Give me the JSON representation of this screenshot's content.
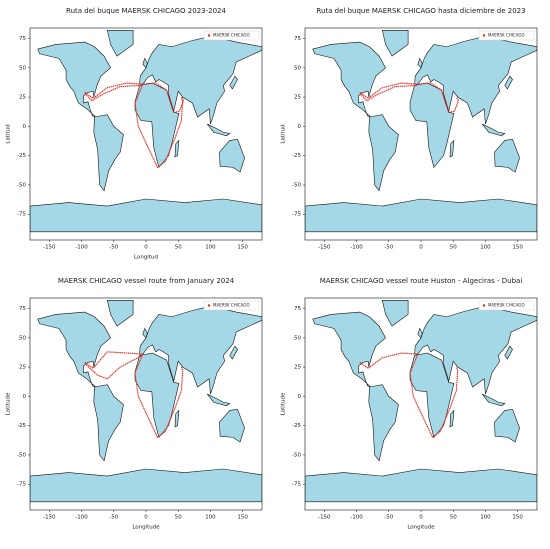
{
  "chart_data": [
    {
      "type": "line",
      "title": "Ruta del buque MAERSK CHICAGO 2023-2024",
      "x_label": "Longitud",
      "y_label": "Latitud",
      "xlim": [
        -180,
        180
      ],
      "ylim": [
        -97,
        84
      ],
      "xticks": [
        -150,
        -100,
        -50,
        0,
        50,
        100,
        150
      ],
      "yticks": [
        -75,
        -50,
        -25,
        0,
        25,
        50,
        75
      ],
      "legend": "upper right",
      "series": [
        {
          "name": "MAERSK CHICAGO",
          "color": "#e8261c",
          "x": [
            -95,
            -82,
            -60,
            -30,
            -6,
            15,
            32,
            38,
            43,
            52,
            58,
            55,
            null,
            -95,
            -84,
            -65,
            -40,
            -6,
            null,
            -5,
            -17,
            -12,
            5,
            18,
            30,
            45,
            55,
            57,
            55
          ],
          "values": [
            29,
            24,
            33,
            37,
            36,
            37,
            31,
            20,
            12,
            13,
            22,
            25,
            null,
            28,
            22,
            28,
            34,
            35,
            null,
            36,
            20,
            0,
            -20,
            -35,
            -30,
            -10,
            5,
            22,
            25
          ]
        }
      ]
    },
    {
      "type": "line",
      "title": "Ruta del buque MAERSK CHICAGO hasta diciembre de 2023",
      "y_label": "Latitud",
      "xlim": [
        -180,
        180
      ],
      "ylim": [
        -97,
        84
      ],
      "xticks": [
        -150,
        -100,
        -50,
        0,
        50,
        100,
        150
      ],
      "yticks": [
        -75,
        -50,
        -25,
        0,
        25,
        50,
        75
      ],
      "legend": "upper right",
      "series": [
        {
          "name": "MAERSK CHICAGO",
          "color": "#e8261c",
          "x": [
            -95,
            -82,
            -60,
            -30,
            -6,
            15,
            32,
            38,
            43,
            52,
            58,
            55,
            null,
            -95,
            -84,
            -65,
            -40,
            -6
          ],
          "values": [
            29,
            24,
            33,
            37,
            36,
            37,
            31,
            20,
            12,
            13,
            22,
            25,
            null,
            28,
            22,
            28,
            34,
            35
          ]
        }
      ]
    },
    {
      "type": "line",
      "title": "MAERSK CHICAGO vessel route from January 2024",
      "x_label": "Longitude",
      "y_label": "Latitude",
      "xlim": [
        -180,
        180
      ],
      "ylim": [
        -97,
        84
      ],
      "xticks": [
        -150,
        -100,
        -50,
        0,
        50,
        100,
        150
      ],
      "yticks": [
        -75,
        -50,
        -25,
        0,
        25,
        50,
        75
      ],
      "legend": "upper right",
      "series": [
        {
          "name": "MAERSK CHICAGO",
          "color": "#e8261c",
          "x": [
            -95,
            -82,
            -60,
            -30,
            -5,
            -17,
            -12,
            5,
            18,
            30,
            45,
            55,
            57,
            55,
            null,
            -95,
            -75,
            -60,
            -40,
            -6
          ],
          "values": [
            29,
            24,
            38,
            37,
            36,
            20,
            0,
            -20,
            -35,
            -30,
            -10,
            5,
            22,
            25,
            null,
            28,
            18,
            15,
            25,
            35
          ]
        }
      ]
    },
    {
      "type": "line",
      "title": "MAERSK CHICAGO vessel route Huston - Algeciras - Dubai",
      "x_label": "Longitude",
      "y_label": "Latitude",
      "xlim": [
        -180,
        180
      ],
      "ylim": [
        -97,
        84
      ],
      "xticks": [
        -150,
        -100,
        -50,
        0,
        50,
        100,
        150
      ],
      "yticks": [
        -75,
        -50,
        -25,
        0,
        25,
        50,
        75
      ],
      "legend": "upper right",
      "series": [
        {
          "name": "MAERSK CHICAGO",
          "color": "#e8261c",
          "x": [
            -95,
            -82,
            -60,
            -30,
            -5,
            -17,
            -12,
            5,
            18,
            30,
            45,
            55,
            57,
            55
          ],
          "values": [
            29,
            24,
            33,
            37,
            36,
            20,
            0,
            -20,
            -35,
            -30,
            -10,
            5,
            22,
            25
          ]
        }
      ]
    }
  ]
}
